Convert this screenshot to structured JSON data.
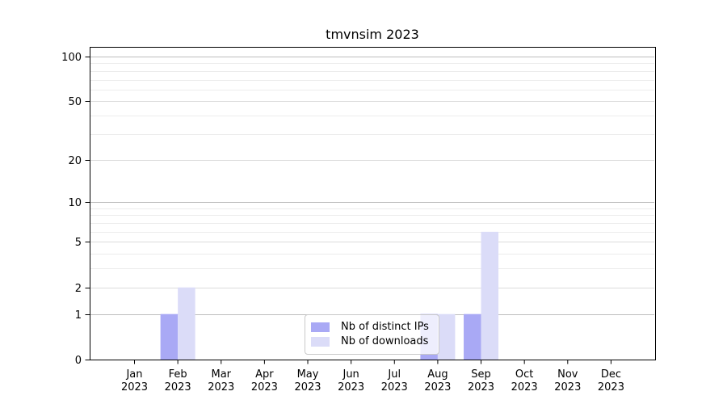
{
  "chart_data": {
    "type": "bar",
    "title": "tmvnsim 2023",
    "categories": [
      "Jan 2023",
      "Feb 2023",
      "Mar 2023",
      "Apr 2023",
      "May 2023",
      "Jun 2023",
      "Jul 2023",
      "Aug 2023",
      "Sep 2023",
      "Oct 2023",
      "Nov 2023",
      "Dec 2023"
    ],
    "x_tick_month": [
      "Jan",
      "Feb",
      "Mar",
      "Apr",
      "May",
      "Jun",
      "Jul",
      "Aug",
      "Sep",
      "Oct",
      "Nov",
      "Dec"
    ],
    "x_tick_year": "2023",
    "series": [
      {
        "name": "Nb of distinct IPs",
        "color": "#a9a9f5",
        "values": [
          0,
          1,
          0,
          0,
          0,
          0,
          0,
          1,
          1,
          0,
          0,
          0
        ]
      },
      {
        "name": "Nb of downloads",
        "color": "#dbdcf8",
        "values": [
          0,
          2,
          0,
          0,
          0,
          0,
          0,
          1,
          6,
          0,
          0,
          0
        ]
      }
    ],
    "yscale": "log1p",
    "ylim": [
      0,
      116
    ],
    "yticks": [
      0,
      1,
      2,
      5,
      10,
      20,
      50,
      100
    ],
    "grid": {
      "decade": [
        1,
        10,
        100
      ],
      "labeled": [
        2,
        5,
        20,
        50
      ],
      "minor": [
        3,
        4,
        6,
        7,
        8,
        9,
        30,
        40,
        60,
        70,
        80,
        90
      ],
      "decade_color": "#bdbdbd",
      "labeled_color": "#dcdcdc",
      "minor_color": "#ececec"
    },
    "legend_position": "lower center",
    "axis_color": "#000000",
    "text_color": "#000000"
  }
}
